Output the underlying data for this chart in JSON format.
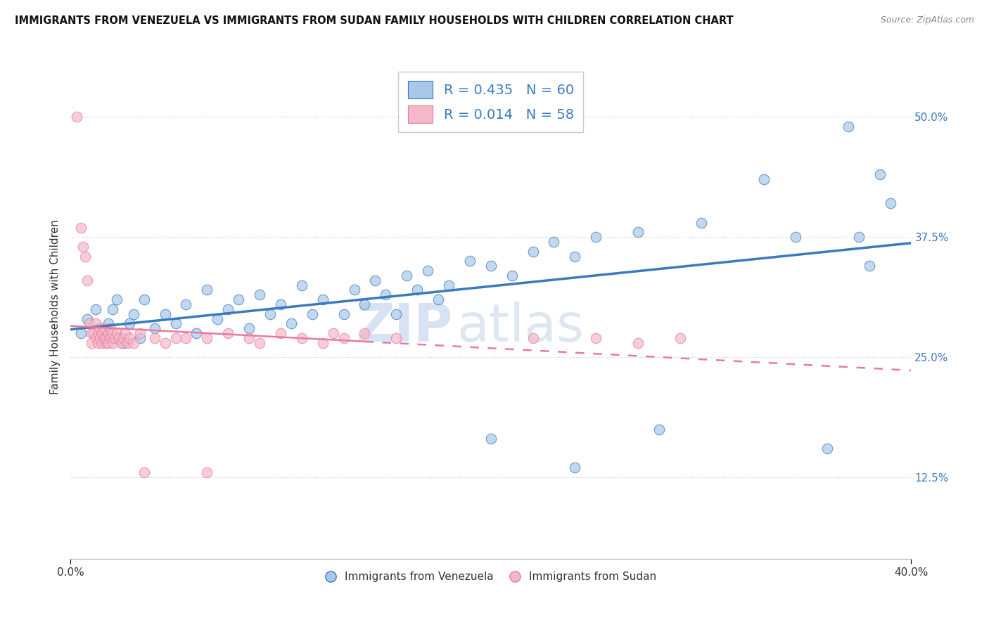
{
  "title": "IMMIGRANTS FROM VENEZUELA VS IMMIGRANTS FROM SUDAN FAMILY HOUSEHOLDS WITH CHILDREN CORRELATION CHART",
  "source": "Source: ZipAtlas.com",
  "ylabel": "Family Households with Children",
  "ytick_values": [
    0.125,
    0.25,
    0.375,
    0.5
  ],
  "xlim": [
    0.0,
    0.4
  ],
  "ylim": [
    0.04,
    0.565
  ],
  "legend1_label": "R = 0.435   N = 60",
  "legend2_label": "R = 0.014   N = 58",
  "legend_bottom_label1": "Immigrants from Venezuela",
  "legend_bottom_label2": "Immigrants from Sudan",
  "blue_color": "#a8c8e8",
  "pink_color": "#f4b8c8",
  "blue_line_color": "#3a7abf",
  "pink_line_color": "#e87aa0",
  "watermark_zip": "ZIP",
  "watermark_atlas": "atlas",
  "venezuela_points": [
    [
      0.005,
      0.275
    ],
    [
      0.008,
      0.29
    ],
    [
      0.012,
      0.3
    ],
    [
      0.015,
      0.27
    ],
    [
      0.018,
      0.285
    ],
    [
      0.02,
      0.3
    ],
    [
      0.022,
      0.31
    ],
    [
      0.025,
      0.265
    ],
    [
      0.028,
      0.285
    ],
    [
      0.03,
      0.295
    ],
    [
      0.033,
      0.27
    ],
    [
      0.035,
      0.31
    ],
    [
      0.04,
      0.28
    ],
    [
      0.045,
      0.295
    ],
    [
      0.05,
      0.285
    ],
    [
      0.055,
      0.305
    ],
    [
      0.06,
      0.275
    ],
    [
      0.065,
      0.32
    ],
    [
      0.07,
      0.29
    ],
    [
      0.075,
      0.3
    ],
    [
      0.08,
      0.31
    ],
    [
      0.085,
      0.28
    ],
    [
      0.09,
      0.315
    ],
    [
      0.095,
      0.295
    ],
    [
      0.1,
      0.305
    ],
    [
      0.105,
      0.285
    ],
    [
      0.11,
      0.325
    ],
    [
      0.115,
      0.295
    ],
    [
      0.12,
      0.31
    ],
    [
      0.13,
      0.295
    ],
    [
      0.135,
      0.32
    ],
    [
      0.14,
      0.305
    ],
    [
      0.145,
      0.33
    ],
    [
      0.15,
      0.315
    ],
    [
      0.155,
      0.295
    ],
    [
      0.16,
      0.335
    ],
    [
      0.165,
      0.32
    ],
    [
      0.17,
      0.34
    ],
    [
      0.175,
      0.31
    ],
    [
      0.18,
      0.325
    ],
    [
      0.19,
      0.35
    ],
    [
      0.2,
      0.345
    ],
    [
      0.21,
      0.335
    ],
    [
      0.22,
      0.36
    ],
    [
      0.23,
      0.37
    ],
    [
      0.24,
      0.355
    ],
    [
      0.25,
      0.375
    ],
    [
      0.2,
      0.165
    ],
    [
      0.24,
      0.135
    ],
    [
      0.27,
      0.38
    ],
    [
      0.28,
      0.175
    ],
    [
      0.3,
      0.39
    ],
    [
      0.33,
      0.435
    ],
    [
      0.345,
      0.375
    ],
    [
      0.36,
      0.155
    ],
    [
      0.37,
      0.49
    ],
    [
      0.375,
      0.375
    ],
    [
      0.38,
      0.345
    ],
    [
      0.385,
      0.44
    ],
    [
      0.39,
      0.41
    ]
  ],
  "sudan_points": [
    [
      0.003,
      0.5
    ],
    [
      0.005,
      0.385
    ],
    [
      0.006,
      0.365
    ],
    [
      0.007,
      0.355
    ],
    [
      0.008,
      0.33
    ],
    [
      0.009,
      0.285
    ],
    [
      0.01,
      0.275
    ],
    [
      0.01,
      0.265
    ],
    [
      0.011,
      0.275
    ],
    [
      0.012,
      0.27
    ],
    [
      0.012,
      0.285
    ],
    [
      0.013,
      0.275
    ],
    [
      0.013,
      0.265
    ],
    [
      0.014,
      0.27
    ],
    [
      0.014,
      0.28
    ],
    [
      0.015,
      0.265
    ],
    [
      0.015,
      0.275
    ],
    [
      0.016,
      0.27
    ],
    [
      0.016,
      0.28
    ],
    [
      0.017,
      0.265
    ],
    [
      0.017,
      0.27
    ],
    [
      0.018,
      0.265
    ],
    [
      0.018,
      0.275
    ],
    [
      0.019,
      0.27
    ],
    [
      0.019,
      0.28
    ],
    [
      0.02,
      0.265
    ],
    [
      0.02,
      0.275
    ],
    [
      0.021,
      0.27
    ],
    [
      0.022,
      0.275
    ],
    [
      0.023,
      0.27
    ],
    [
      0.024,
      0.265
    ],
    [
      0.025,
      0.27
    ],
    [
      0.026,
      0.275
    ],
    [
      0.027,
      0.265
    ],
    [
      0.028,
      0.27
    ],
    [
      0.03,
      0.265
    ],
    [
      0.033,
      0.275
    ],
    [
      0.04,
      0.27
    ],
    [
      0.045,
      0.265
    ],
    [
      0.05,
      0.27
    ],
    [
      0.055,
      0.27
    ],
    [
      0.065,
      0.27
    ],
    [
      0.075,
      0.275
    ],
    [
      0.085,
      0.27
    ],
    [
      0.09,
      0.265
    ],
    [
      0.1,
      0.275
    ],
    [
      0.11,
      0.27
    ],
    [
      0.12,
      0.265
    ],
    [
      0.125,
      0.275
    ],
    [
      0.13,
      0.27
    ],
    [
      0.035,
      0.13
    ],
    [
      0.14,
      0.275
    ],
    [
      0.155,
      0.27
    ],
    [
      0.27,
      0.265
    ],
    [
      0.29,
      0.27
    ],
    [
      0.065,
      0.13
    ],
    [
      0.22,
      0.27
    ],
    [
      0.25,
      0.27
    ]
  ]
}
